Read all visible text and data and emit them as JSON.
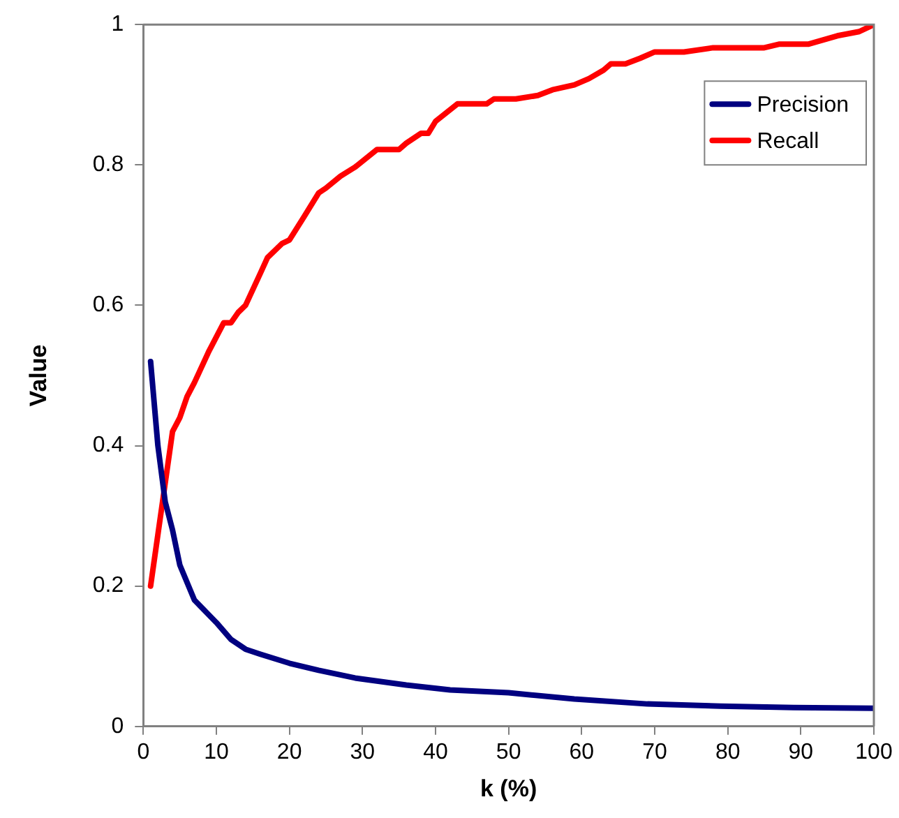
{
  "chart_data": {
    "type": "line",
    "xlabel": "k (%)",
    "ylabel": "Value",
    "xlim": [
      0,
      100
    ],
    "xticks": [
      0,
      10,
      20,
      30,
      40,
      50,
      60,
      70,
      80,
      90,
      100
    ],
    "ylim": [
      0,
      1
    ],
    "yticks": [
      0,
      0.2,
      0.4,
      0.6,
      0.8,
      1
    ],
    "grid": false,
    "legend": "top right",
    "marker": "none",
    "line_style": "solid",
    "series": [
      {
        "name": "Precision",
        "color": "#000080",
        "x": [
          1,
          2,
          3,
          4,
          5,
          7,
          10,
          12,
          14,
          16,
          20,
          24,
          29,
          36,
          42,
          50,
          59,
          69,
          79,
          89,
          100
        ],
        "values": [
          0.52,
          0.4,
          0.32,
          0.28,
          0.23,
          0.18,
          0.148,
          0.124,
          0.11,
          0.103,
          0.09,
          0.08,
          0.069,
          0.059,
          0.052,
          0.048,
          0.039,
          0.032,
          0.029,
          0.027,
          0.026
        ]
      },
      {
        "name": "Recall",
        "color": "#ff0000",
        "x": [
          1,
          4,
          5,
          6,
          7,
          9,
          11,
          12,
          13,
          14,
          16,
          17,
          19,
          20,
          22,
          24,
          25,
          27,
          29,
          32,
          35,
          36,
          38,
          39,
          40,
          43,
          47,
          48,
          51,
          54,
          56,
          59,
          61,
          63,
          64,
          66,
          68,
          70,
          74,
          78,
          85,
          87,
          91,
          93,
          95,
          98,
          100
        ],
        "values": [
          0.2,
          0.42,
          0.44,
          0.47,
          0.49,
          0.535,
          0.575,
          0.575,
          0.59,
          0.6,
          0.645,
          0.668,
          0.688,
          0.693,
          0.726,
          0.76,
          0.767,
          0.784,
          0.797,
          0.822,
          0.822,
          0.831,
          0.845,
          0.845,
          0.862,
          0.887,
          0.887,
          0.894,
          0.894,
          0.899,
          0.907,
          0.914,
          0.923,
          0.935,
          0.944,
          0.944,
          0.952,
          0.961,
          0.961,
          0.967,
          0.967,
          0.972,
          0.972,
          0.978,
          0.984,
          0.99,
          1.0
        ]
      }
    ]
  }
}
